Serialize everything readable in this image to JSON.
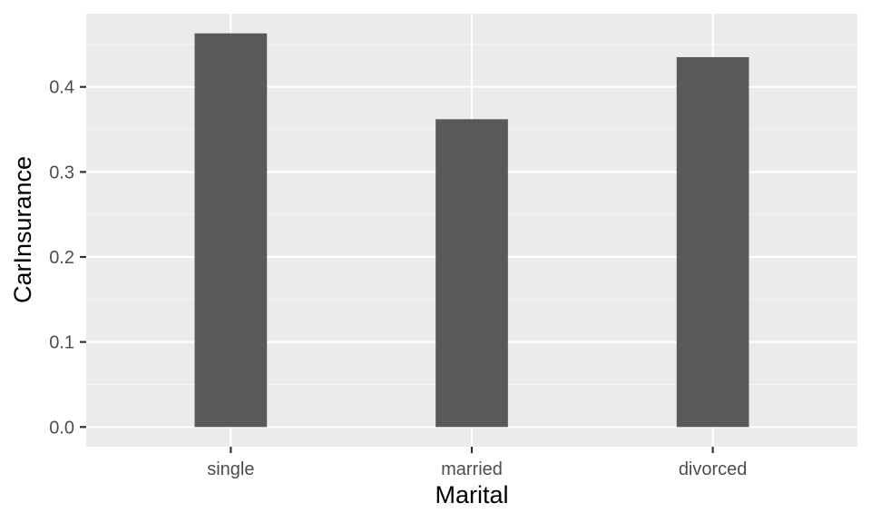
{
  "chart_data": {
    "type": "bar",
    "categories": [
      "single",
      "married",
      "divorced"
    ],
    "values": [
      0.463,
      0.362,
      0.435
    ],
    "title": "",
    "xlabel": "Marital",
    "ylabel": "CarInsurance",
    "ylim": [
      -0.0232,
      0.4862
    ],
    "yticks": [
      0.0,
      0.1,
      0.2,
      0.3,
      0.4
    ],
    "ytick_labels": [
      "0.0",
      "0.1",
      "0.2",
      "0.3",
      "0.4"
    ],
    "grid": true,
    "legend": "none",
    "colors": {
      "panel_background": "#ebebeb",
      "grid_major": "#ffffff",
      "grid_minor": "#f5f5f5",
      "bar_fill": "#595959",
      "tick_mark": "#333333",
      "tick_label": "#4d4d4d",
      "axis_title": "#000000"
    }
  }
}
